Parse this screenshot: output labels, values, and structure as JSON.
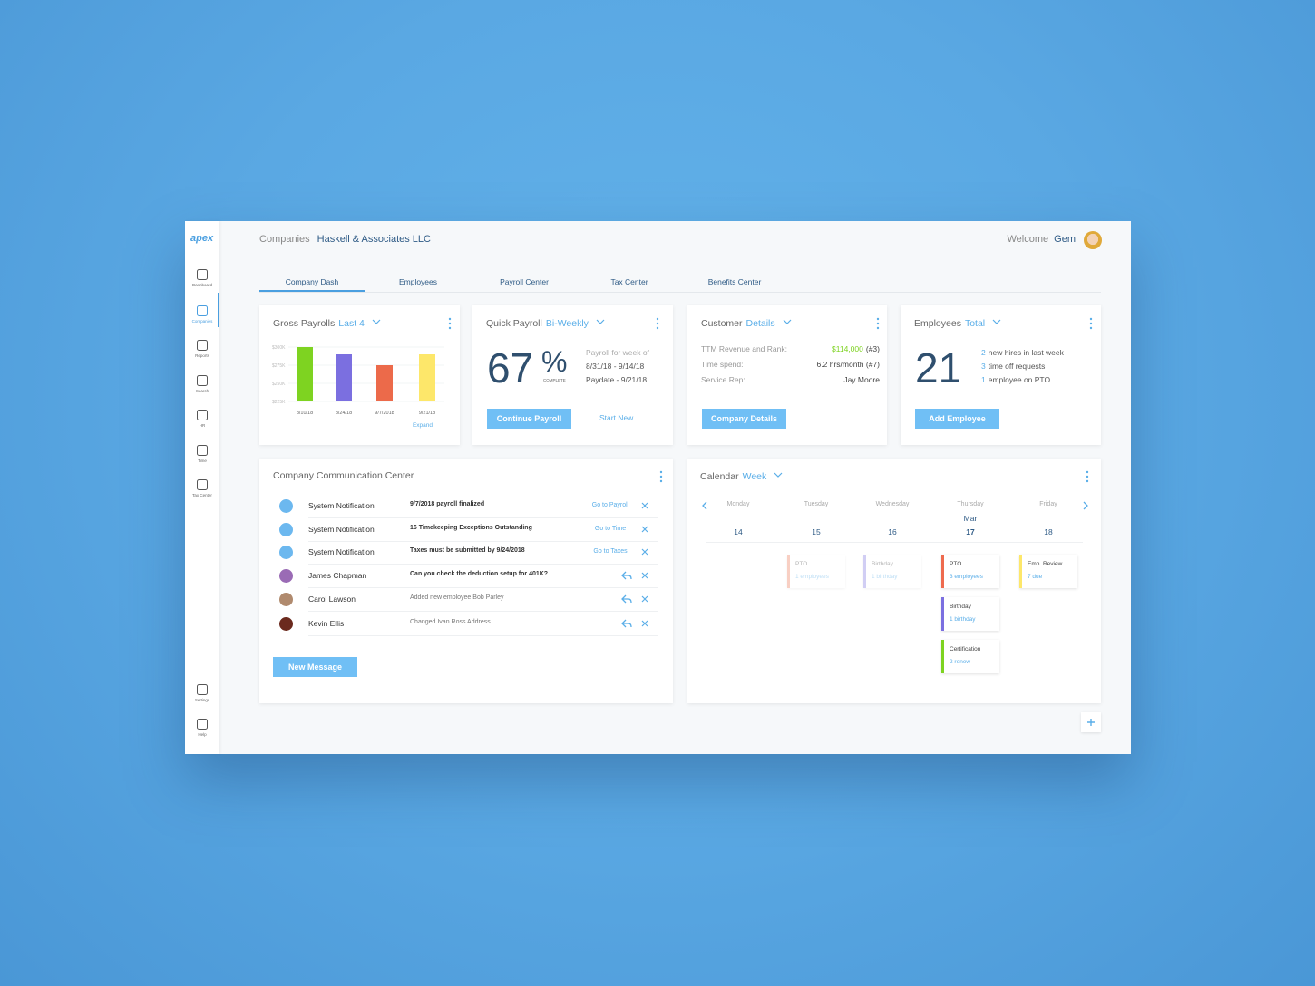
{
  "brand": "apex",
  "sidebar": [
    "Dashboard",
    "Companies",
    "Reports",
    "Search",
    "HR",
    "Time",
    "Tax Center"
  ],
  "sidebar_active": 1,
  "sidebar_bottom": [
    "Settings",
    "Help"
  ],
  "header": {
    "breadcrumb": "Companies",
    "company": "Haskell & Associates LLC",
    "welcome": "Welcome",
    "user": "Gem"
  },
  "tabs": [
    "Company Dash",
    "Employees",
    "Payroll Center",
    "Tax Center",
    "Benefits Center"
  ],
  "active_tab": 0,
  "chart_data": {
    "type": "bar",
    "title": "Gross Payrolls",
    "highlight": "Last 4",
    "categories": [
      "8/10/18",
      "8/24/18",
      "9/7/2018",
      "9/21/18"
    ],
    "values": [
      300000,
      290000,
      275000,
      290000
    ],
    "colors": [
      "#7ed321",
      "#7b6fe0",
      "#ec6a4a",
      "#fde76a"
    ],
    "ylim": [
      225000,
      300000
    ],
    "yticks": [
      {
        "value": 300000,
        "label": "$300K"
      },
      {
        "value": 275000,
        "label": "$275K"
      },
      {
        "value": 250000,
        "label": "$250K"
      },
      {
        "value": 225000,
        "label": "$225K"
      }
    ],
    "grid": true,
    "link": "Expand"
  },
  "quick_payroll": {
    "title": "Quick Payroll",
    "highlight": "Bi-Weekly",
    "percent": 67,
    "unit": "%",
    "caption": "COMPLETE",
    "lines": [
      "Payroll for week of",
      "8/31/18 - 9/14/18",
      "Paydate - 9/21/18"
    ],
    "button": "Continue Payroll",
    "link": "Start New"
  },
  "customer": {
    "title": "Customer",
    "highlight": "Details",
    "rows": [
      {
        "label": "TTM Revenue and Rank:",
        "value": "$114,000",
        "extra": "(#3)"
      },
      {
        "label": "Time spend:",
        "value": "6.2 hrs/month (#7)"
      },
      {
        "label": "Service Rep:",
        "value": "Jay Moore"
      }
    ],
    "button": "Company Details"
  },
  "employees": {
    "title": "Employees",
    "highlight": "Total",
    "total": 21,
    "lines": [
      {
        "count": 2,
        "text": "new hires in last week"
      },
      {
        "count": 3,
        "text": "time off requests"
      },
      {
        "count": 1,
        "text": "employee on PTO"
      }
    ],
    "button": "Add Employee"
  },
  "communication": {
    "title": "Company Communication Center",
    "button": "New Message",
    "messages": [
      {
        "sender": "System Notification",
        "text": "9/7/2018 payroll finalized",
        "action": "Go to Payroll",
        "avatar": "#6cb8ef",
        "bold": true
      },
      {
        "sender": "System Notification",
        "text": "16 Timekeeping Exceptions Outstanding",
        "action": "Go to Time",
        "avatar": "#6cb8ef",
        "bold": true
      },
      {
        "sender": "System Notification",
        "text": "Taxes must be submitted by 9/24/2018",
        "action": "Go to Taxes",
        "avatar": "#6cb8ef",
        "bold": true
      },
      {
        "sender": "James Chapman",
        "text": "Can you check the deduction setup for 401K?",
        "avatar": "#9a6bb5",
        "bold": true
      },
      {
        "sender": "Carol Lawson",
        "text": "Added new employee Bob Parley",
        "avatar": "#b08a6e",
        "bold": false
      },
      {
        "sender": "Kevin Ellis",
        "text": "Changed Ivan Ross Address",
        "avatar": "#6b2a1e",
        "bold": false
      }
    ]
  },
  "calendar": {
    "title": "Calendar",
    "highlight": "Week",
    "month": "Mar",
    "today": 3,
    "days": [
      "Monday",
      "Tuesday",
      "Wednesday",
      "Thursday",
      "Friday"
    ],
    "dates": [
      14,
      15,
      16,
      17,
      18
    ],
    "events": [
      {
        "day": 1,
        "row": 0,
        "title": "PTO",
        "detail": "1 employees",
        "color": "#f08a6c",
        "muted": true
      },
      {
        "day": 2,
        "row": 0,
        "title": "Birthday",
        "detail": "1 birthday",
        "color": "#8f86e6",
        "muted": true
      },
      {
        "day": 3,
        "row": 0,
        "title": "PTO",
        "detail": "3 employees",
        "color": "#ee6a4e",
        "muted": false
      },
      {
        "day": 3,
        "row": 1,
        "title": "Birthday",
        "detail": "1 birthday",
        "color": "#7b6fe0",
        "muted": false
      },
      {
        "day": 3,
        "row": 2,
        "title": "Certification",
        "detail": "2 renew",
        "color": "#7ed321",
        "muted": false
      },
      {
        "day": 4,
        "row": 0,
        "title": "Emp. Review",
        "detail": "7 due",
        "color": "#fde76a",
        "muted": false
      }
    ]
  }
}
